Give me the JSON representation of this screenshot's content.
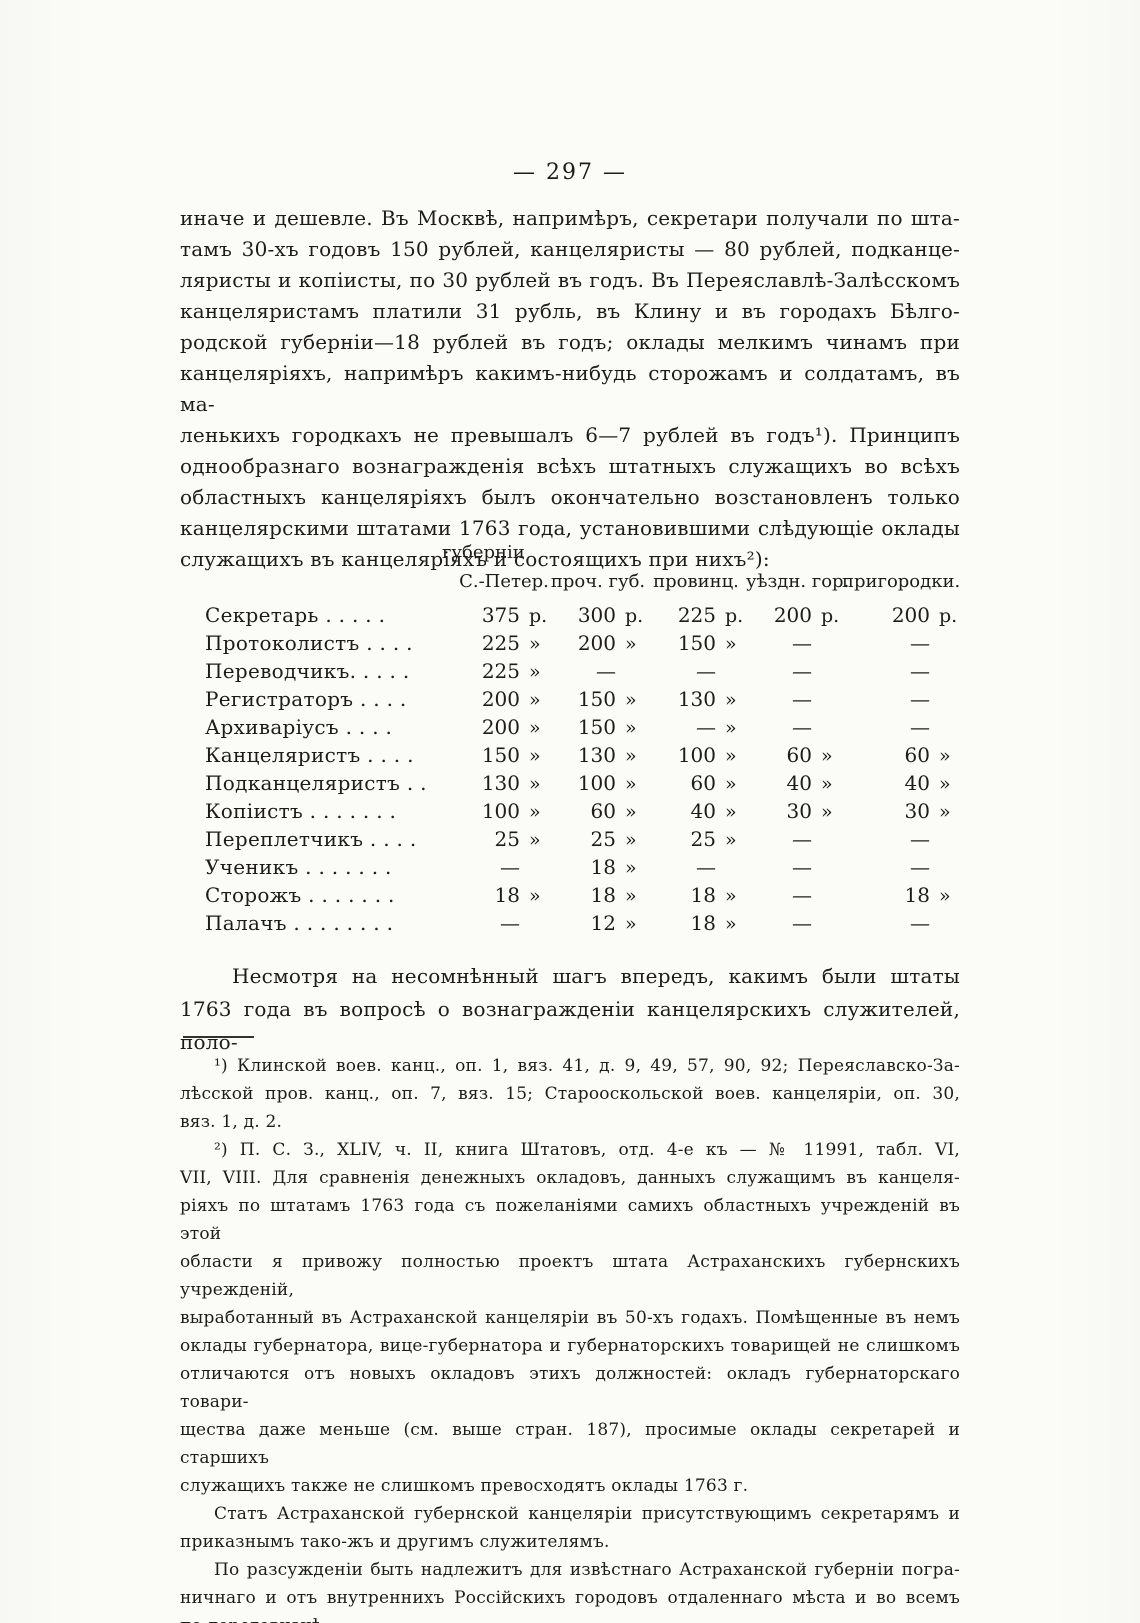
{
  "page": {
    "number": "297",
    "number_display": "— 297 —"
  },
  "body": {
    "intro": {
      "indent_first": false,
      "justify_last": false,
      "lines": [
        "иначе и дешевле. Въ Москвѣ, напримѣръ, секретари получали по шта-",
        "тамъ 30-хъ годовъ 150 рублей, канцеляристы — 80 рублей, подканце-",
        "ляристы и копіисты, по 30 рублей въ годъ. Въ Переяславлѣ-Залѣсскомъ",
        "канцеляристамъ платили 31 рубль, въ Клину и въ городахъ Бѣлго-",
        "родской губерніи—18 рублей въ годъ; оклады мелкимъ чинамъ при",
        "канцеляріяхъ, напримѣръ какимъ-нибудь сторожамъ и солдатамъ, въ ма-",
        "ленькихъ городкахъ не превышалъ 6—7 рублей въ годъ¹). Принципъ",
        "однообразнаго вознагражденія всѣхъ штатныхъ служащихъ во всѣхъ",
        "областныхъ канцеляріяхъ былъ окончательно возстановленъ только",
        "канцелярскими штатами 1763 года, установившими слѣдующіе оклады",
        "служащихъ въ канцеляріяхъ и состоящихъ при нихъ²):"
      ]
    },
    "after_table": {
      "indent_first": true,
      "justify_last": true,
      "lines": [
        "Несмотря на несомнѣнный шагъ впередъ, какимъ были штаты",
        "1763 года въ вопросѣ о вознагражденіи канцелярскихъ служителей, поло-"
      ]
    }
  },
  "table": {
    "superheader": "губерніи",
    "columns": [
      "С.-Петер.",
      "проч. губ.",
      "провинц.",
      "уѣздн. гор.",
      "пригородки."
    ],
    "rows": [
      {
        "label": "Секретарь . . . . .",
        "cells": [
          [
            "375",
            "р."
          ],
          [
            "300",
            "р."
          ],
          [
            "225",
            "р."
          ],
          [
            "200",
            "р."
          ],
          [
            "200",
            "р."
          ]
        ]
      },
      {
        "label": "Протоколистъ . . . .",
        "cells": [
          [
            "225",
            "»"
          ],
          [
            "200",
            "»"
          ],
          [
            "150",
            "»"
          ],
          [
            "—",
            ""
          ],
          [
            "—",
            ""
          ]
        ]
      },
      {
        "label": "Переводчикъ. . . . .",
        "cells": [
          [
            "225",
            "»"
          ],
          [
            "—",
            ""
          ],
          [
            "—",
            ""
          ],
          [
            "—",
            ""
          ],
          [
            "—",
            ""
          ]
        ]
      },
      {
        "label": "Регистраторъ . . . .",
        "cells": [
          [
            "200",
            "»"
          ],
          [
            "150",
            "»"
          ],
          [
            "130",
            "»"
          ],
          [
            "—",
            ""
          ],
          [
            "—",
            ""
          ]
        ]
      },
      {
        "label": "Архиваріусъ . . . .",
        "cells": [
          [
            "200",
            "»"
          ],
          [
            "150",
            "»"
          ],
          [
            "—",
            "»"
          ],
          [
            "—",
            ""
          ],
          [
            "—",
            ""
          ]
        ]
      },
      {
        "label": "Канцеляристъ . . . .",
        "cells": [
          [
            "150",
            "»"
          ],
          [
            "130",
            "»"
          ],
          [
            "100",
            "»"
          ],
          [
            "60",
            "»"
          ],
          [
            "60",
            "»"
          ]
        ]
      },
      {
        "label": "Подканцеляристъ . .",
        "cells": [
          [
            "130",
            "»"
          ],
          [
            "100",
            "»"
          ],
          [
            "60",
            "»"
          ],
          [
            "40",
            "»"
          ],
          [
            "40",
            "»"
          ]
        ]
      },
      {
        "label": "Копіистъ . . . . . . .",
        "cells": [
          [
            "100",
            "»"
          ],
          [
            "60",
            "»"
          ],
          [
            "40",
            "»"
          ],
          [
            "30",
            "»"
          ],
          [
            "30",
            "»"
          ]
        ]
      },
      {
        "label": "Переплетчикъ . . . .",
        "cells": [
          [
            "25",
            "»"
          ],
          [
            "25",
            "»"
          ],
          [
            "25",
            "»"
          ],
          [
            "—",
            ""
          ],
          [
            "—",
            ""
          ]
        ]
      },
      {
        "label": "Ученикъ . . . . . . .",
        "cells": [
          [
            "—",
            ""
          ],
          [
            "18",
            "»"
          ],
          [
            "—",
            ""
          ],
          [
            "—",
            ""
          ],
          [
            "—",
            ""
          ]
        ]
      },
      {
        "label": "Сторожъ . . . . . . .",
        "cells": [
          [
            "18",
            "»"
          ],
          [
            "18",
            "»"
          ],
          [
            "18",
            "»"
          ],
          [
            "—",
            ""
          ],
          [
            "18",
            "»"
          ]
        ]
      },
      {
        "label": "Палачъ . . . . . . . .",
        "cells": [
          [
            "—",
            ""
          ],
          [
            "12",
            "»"
          ],
          [
            "18",
            "»"
          ],
          [
            "—",
            ""
          ],
          [
            "—",
            ""
          ]
        ]
      }
    ]
  },
  "footnotes": {
    "fn1": {
      "indent_first": true,
      "justify_last": false,
      "lines": [
        "¹) Клинской воев. канц., оп. 1, вяз. 41, д. 9, 49, 57, 90, 92; Переяславско-За-",
        "лѣсской пров. канц., оп. 7, вяз. 15; Старооскольской воев. канцеляріи, оп. 30,",
        "вяз. 1, д. 2."
      ]
    },
    "fn2_part1": {
      "indent_first": true,
      "justify_last": false,
      "lines": [
        "²) П. С. З., XLIV, ч. II, книга Штатовъ, отд. 4-е къ — № 11991, табл. VI,",
        "VII, VIII. Для сравненія денежныхъ окладовъ, данныхъ служащимъ въ канцеля-",
        "ріяхъ по штатамъ 1763 года съ пожеланіями самихъ областныхъ учрежденій въ этой",
        "области я привожу полностью проектъ штата Астраханскихъ губернскихъ учрежденій,",
        "выработанный въ Астраханской канцеляріи въ 50-хъ годахъ. Помѣщенные въ немъ",
        "оклады губернатора, вице-губернатора и губернаторскихъ товарищей не слишкомъ",
        "отличаются отъ новыхъ окладовъ этихъ должностей: окладъ губернаторскаго товари-",
        "щества даже меньше (см. выше стран. 187), просимые оклады секретарей и старшихъ",
        "служащихъ также не слишкомъ превосходятъ оклады 1763 г."
      ]
    },
    "fn2_part2": {
      "indent_first": true,
      "justify_last": false,
      "lines": [
        "Статъ Астраханской губернской канцеляріи присутствующимъ секретарямъ и",
        "приказнымъ тако-жъ и другимъ служителямъ."
      ]
    },
    "fn2_part3": {
      "indent_first": true,
      "justify_last": false,
      "lines": [
        "По разсужденіи быть надлежитъ для извѣстнаго Астраханской губерніи погра-",
        "ничнаго и отъ внутреннихъ Россійскихъ городовъ отдаленнаго мѣста и во всемъ",
        "по дороговизнѣ:"
      ]
    }
  }
}
